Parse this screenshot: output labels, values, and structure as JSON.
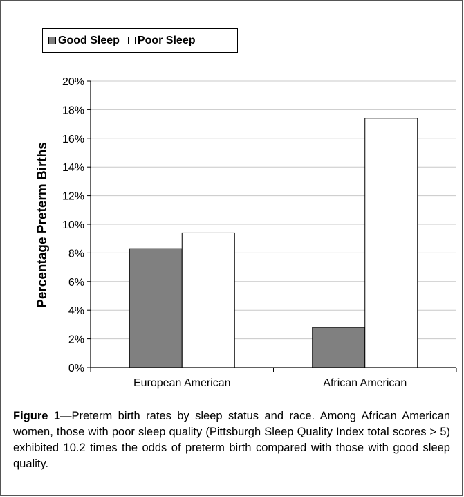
{
  "legend": {
    "good_label": "Good Sleep",
    "poor_label": "Poor Sleep"
  },
  "caption": {
    "label": "Figure 1",
    "text": "—Preterm birth rates by sleep status and race. Among African American women, those with poor sleep quality (Pittsburgh Sleep Quality Index total scores > 5) exhibited 10.2 times the odds of preterm birth compared with those with good sleep quality."
  },
  "colors": {
    "good": "#808080",
    "poor": "#ffffff",
    "grid": "#c8c8c8",
    "axis": "#000000"
  },
  "chart_data": {
    "type": "bar",
    "title": "",
    "xlabel": "",
    "ylabel": "Percentage Preterm Births",
    "categories": [
      "European American",
      "African American"
    ],
    "series": [
      {
        "name": "Good Sleep",
        "values": [
          8.3,
          2.8
        ]
      },
      {
        "name": "Poor Sleep",
        "values": [
          9.4,
          17.4
        ]
      }
    ],
    "ylim": [
      0,
      20
    ],
    "yticks": [
      0,
      2,
      4,
      6,
      8,
      10,
      12,
      14,
      16,
      18,
      20
    ],
    "ytick_labels": [
      "0%",
      "2%",
      "4%",
      "6%",
      "8%",
      "10%",
      "12%",
      "14%",
      "16%",
      "18%",
      "20%"
    ],
    "grid": true,
    "legend_position": "top-left"
  }
}
